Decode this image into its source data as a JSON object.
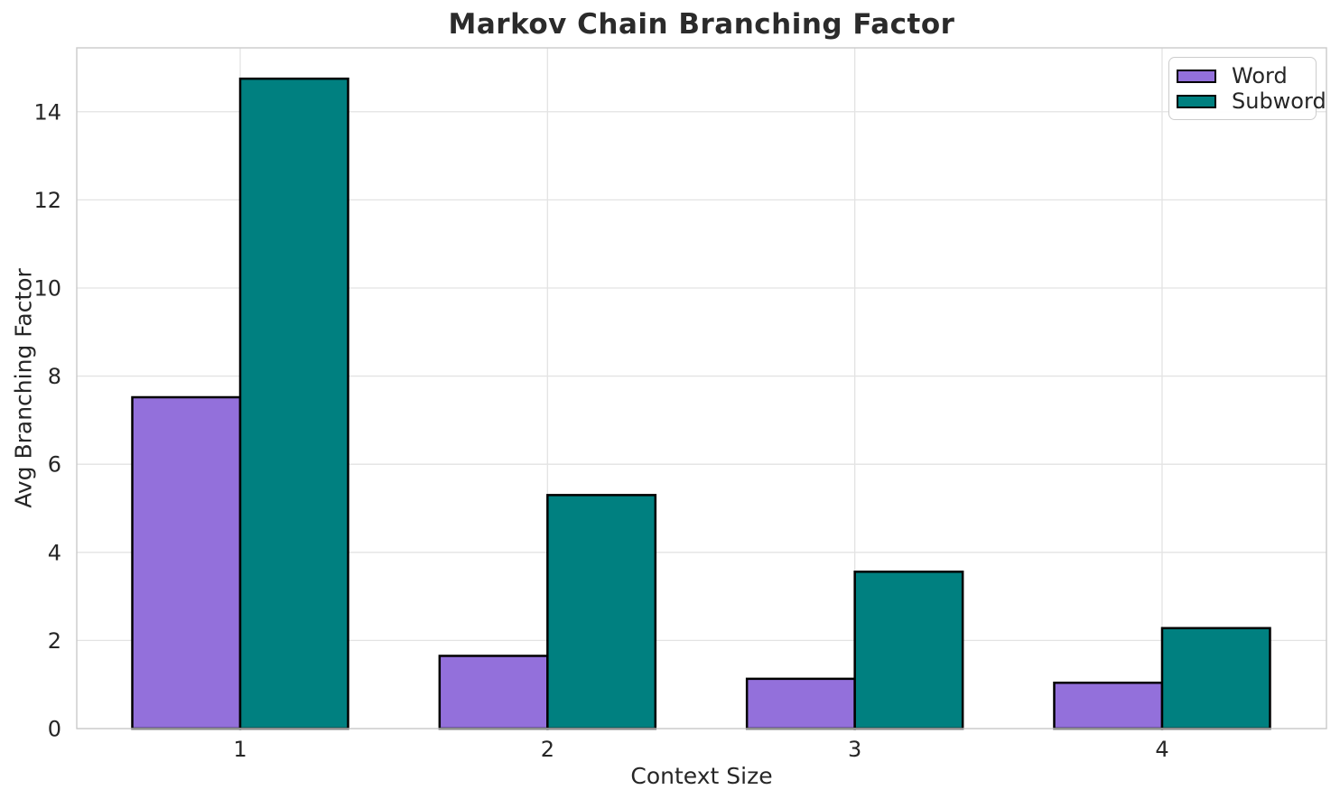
{
  "chart_data": {
    "type": "bar",
    "title": "Markov Chain Branching Factor",
    "xlabel": "Context Size",
    "ylabel": "Avg Branching Factor",
    "categories": [
      "1",
      "2",
      "3",
      "4"
    ],
    "series": [
      {
        "name": "Word",
        "color": "#9370DB",
        "values": [
          7.52,
          1.65,
          1.13,
          1.04
        ]
      },
      {
        "name": "Subword",
        "color": "#008080",
        "values": [
          14.75,
          5.3,
          3.56,
          2.28
        ]
      }
    ],
    "bar_edge_color": "#000000",
    "ylim": [
      0,
      15.45
    ],
    "yticks": [
      0,
      2,
      4,
      6,
      8,
      10,
      12,
      14
    ],
    "grid": true,
    "legend_position": "upper right",
    "colors": {
      "background": "#ffffff",
      "grid": "#e3e3e3",
      "spine": "#cbcbcb",
      "text": "#262626",
      "title": "#2b2b2b"
    }
  }
}
